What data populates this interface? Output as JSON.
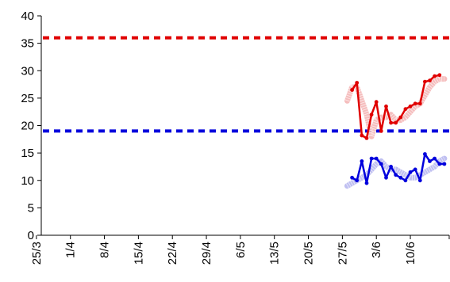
{
  "chart_data": {
    "type": "line",
    "title": "",
    "xlabel": "",
    "ylabel": "",
    "ylim": [
      0,
      40
    ],
    "yticks": [
      0,
      5,
      10,
      15,
      20,
      25,
      30,
      35,
      40
    ],
    "xlim": [
      "25/3",
      "17/6"
    ],
    "xticks": [
      "25/3",
      "1/4",
      "8/4",
      "15/4",
      "22/4",
      "29/4",
      "6/5",
      "13/5",
      "20/5",
      "27/5",
      "3/6",
      "10/6"
    ],
    "grid": false,
    "legend": "none",
    "reference_lines": [
      {
        "y": 36,
        "color": "#e00000",
        "style": "dashed"
      },
      {
        "y": 19,
        "color": "#0000dd",
        "style": "dashed"
      }
    ],
    "series": [
      {
        "color": "#e00000",
        "style": "line-markers",
        "x": [
          "29/5",
          "30/5",
          "31/5",
          "1/6",
          "2/6",
          "3/6",
          "4/6",
          "5/6",
          "6/6",
          "7/6",
          "8/6",
          "9/6",
          "10/6",
          "11/6",
          "12/6",
          "13/6",
          "14/6",
          "15/6",
          "16/6"
        ],
        "values": [
          26.5,
          27.8,
          18.2,
          17.7,
          22,
          24.3,
          19,
          23.5,
          20.5,
          20.5,
          21.5,
          23,
          23.5,
          24,
          24,
          28,
          28.2,
          29,
          29.2
        ]
      },
      {
        "color": "#f4b6b6",
        "style": "band",
        "x": [
          "28/5",
          "29/5",
          "30/5",
          "31/5",
          "1/6",
          "2/6",
          "3/6",
          "4/6",
          "5/6",
          "6/6",
          "7/6",
          "8/6",
          "9/6",
          "10/6",
          "11/6",
          "12/6",
          "13/6",
          "14/6",
          "15/6",
          "16/6",
          "17/6"
        ],
        "values": [
          24.5,
          27,
          27,
          24.5,
          22,
          18,
          21,
          21.5,
          21.5,
          22,
          21,
          21,
          21.5,
          22.5,
          23.5,
          24,
          25.5,
          27,
          28,
          28.5,
          28.5
        ]
      },
      {
        "color": "#0000dd",
        "style": "line-markers",
        "x": [
          "29/5",
          "30/5",
          "31/5",
          "1/6",
          "2/6",
          "3/6",
          "4/6",
          "5/6",
          "6/6",
          "7/6",
          "8/6",
          "9/6",
          "10/6",
          "11/6",
          "12/6",
          "13/6",
          "14/6",
          "15/6",
          "16/6",
          "17/6"
        ],
        "values": [
          10.5,
          10,
          13.5,
          9.5,
          14,
          14,
          13,
          10.5,
          12.5,
          11,
          10.5,
          10,
          11.5,
          12,
          10,
          14.8,
          13.5,
          14,
          13,
          13
        ]
      },
      {
        "color": "#b8b8f0",
        "style": "band",
        "x": [
          "28/5",
          "29/5",
          "30/5",
          "31/5",
          "1/6",
          "2/6",
          "3/6",
          "4/6",
          "5/6",
          "6/6",
          "7/6",
          "8/6",
          "9/6",
          "10/6",
          "11/6",
          "12/6",
          "13/6",
          "14/6",
          "15/6",
          "16/6",
          "17/6"
        ],
        "values": [
          9,
          9.5,
          10,
          10.5,
          11,
          12,
          13,
          13.5,
          12.5,
          12,
          12,
          11.5,
          11,
          10.5,
          10.5,
          11,
          11.5,
          12,
          12.5,
          13.5,
          14
        ]
      }
    ]
  }
}
